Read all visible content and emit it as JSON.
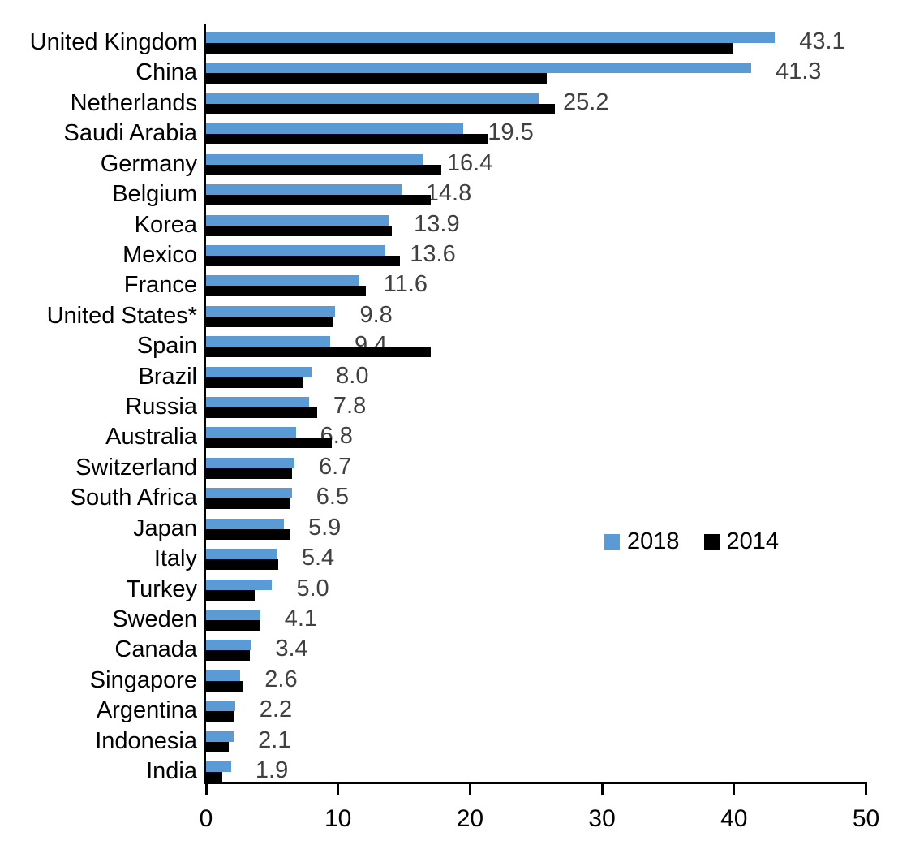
{
  "chart_data": {
    "type": "bar",
    "orientation": "horizontal",
    "title": "",
    "categories": [
      "United Kingdom",
      "China",
      "Netherlands",
      "Saudi Arabia",
      "Germany",
      "Belgium",
      "Korea",
      "Mexico",
      "France",
      "United States*",
      "Spain",
      "Brazil",
      "Russia",
      "Australia",
      "Switzerland",
      "South Africa",
      "Japan",
      "Italy",
      "Turkey",
      "Sweden",
      "Canada",
      "Singapore",
      "Argentina",
      "Indonesia",
      "India"
    ],
    "series": [
      {
        "name": "2018",
        "color": "#5B9BD5",
        "values": [
          43.1,
          41.3,
          25.2,
          19.5,
          16.4,
          14.8,
          13.9,
          13.6,
          11.6,
          9.8,
          9.4,
          8.0,
          7.8,
          6.8,
          6.7,
          6.5,
          5.9,
          5.4,
          5.0,
          4.1,
          3.4,
          2.6,
          2.2,
          2.1,
          1.9
        ]
      },
      {
        "name": "2014",
        "color": "#000000",
        "values": [
          39.9,
          25.8,
          26.4,
          21.3,
          17.8,
          17.0,
          14.1,
          14.7,
          12.1,
          9.6,
          17.0,
          7.4,
          8.4,
          9.5,
          6.5,
          6.4,
          6.4,
          5.5,
          3.7,
          4.1,
          3.3,
          2.8,
          2.1,
          1.7,
          1.2
        ]
      }
    ],
    "value_labels": [
      "43.1",
      "41.3",
      "25.2",
      "19.5",
      "16.4",
      "14.8",
      "13.9",
      "13.6",
      "11.6",
      "9.8",
      "9.4",
      "8.0",
      "7.8",
      "6.8",
      "6.7",
      "6.5",
      "5.9",
      "5.4",
      "5.0",
      "4.1",
      "3.4",
      "2.6",
      "2.2",
      "2.1",
      "1.9"
    ],
    "value_labels_series": "2018",
    "xlim": [
      0,
      50
    ],
    "x_ticks": [
      "0",
      "10",
      "20",
      "30",
      "40",
      "50"
    ],
    "grid": false,
    "legend": {
      "position": "center-right",
      "items": [
        {
          "label": "2018",
          "color": "#5B9BD5"
        },
        {
          "label": "2014",
          "color": "#000000"
        }
      ]
    },
    "colors": {
      "axis": "#000000",
      "category_label": "#000000",
      "value_label": "#404040",
      "background": "#ffffff"
    }
  }
}
